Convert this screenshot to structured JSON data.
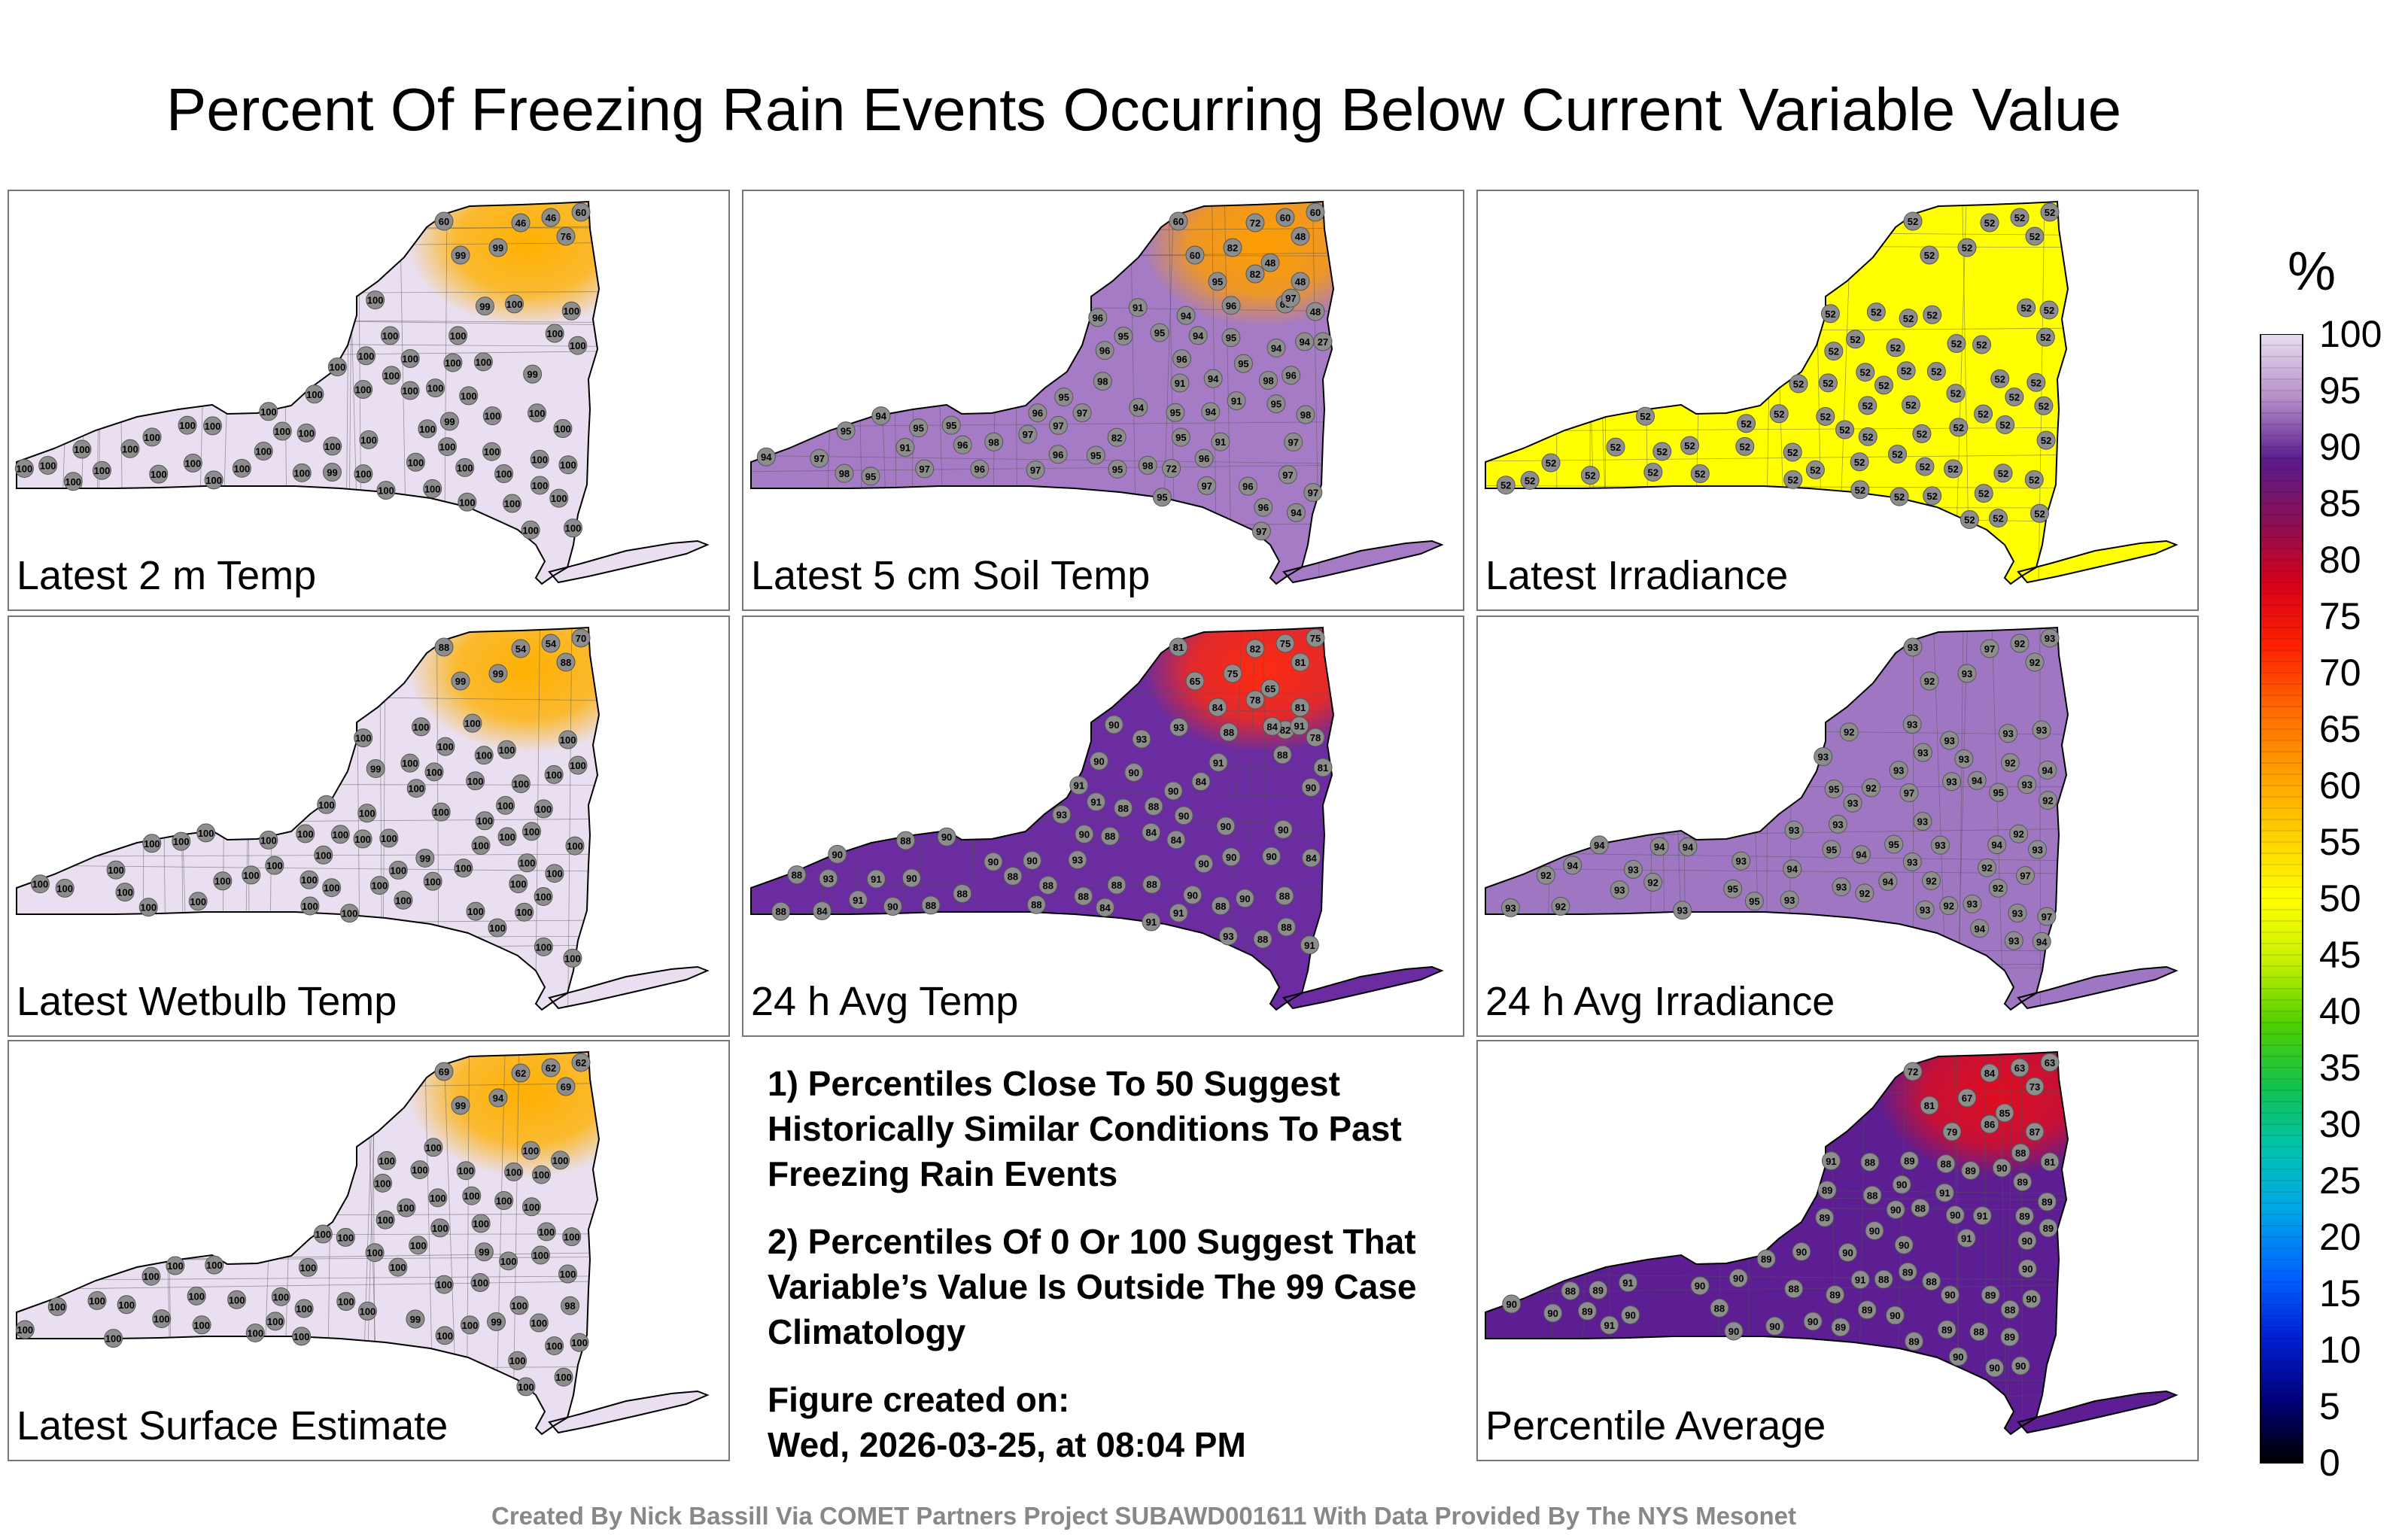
{
  "title": "Percent Of Freezing Rain Events Occurring Below Current Variable Value",
  "colorbar": {
    "unit": "%",
    "ticks": [
      "100",
      "95",
      "90",
      "85",
      "80",
      "75",
      "70",
      "65",
      "60",
      "55",
      "50",
      "45",
      "40",
      "35",
      "30",
      "25",
      "20",
      "15",
      "10",
      "5",
      "0"
    ],
    "colors": [
      "#e8def0",
      "#b791c9",
      "#5a1c8d",
      "#8a0f55",
      "#d8001a",
      "#ff2200",
      "#ff6a00",
      "#ff9f00",
      "#ffd000",
      "#ffff00",
      "#c8f000",
      "#4fcf00",
      "#13c24c",
      "#00c3b0",
      "#00a5e8",
      "#0064ff",
      "#0020d4",
      "#00007a",
      "#000000"
    ]
  },
  "panels": [
    {
      "label": "Latest 2 m Temp",
      "base": "#e9dff0",
      "hot": "#ffb000",
      "hot_values": [
        "60",
        "46",
        "46",
        "60",
        "76",
        "99",
        "99"
      ],
      "values": [
        "100",
        "100",
        "99",
        "99",
        "100",
        "100",
        "99",
        "100",
        "100",
        "99",
        "100",
        "100",
        "100",
        "100",
        "100",
        "100",
        "100",
        "100",
        "100",
        "100",
        "100",
        "100",
        "100",
        "100",
        "100",
        "100",
        "100",
        "100",
        "100",
        "100",
        "100",
        "100",
        "100",
        "100",
        "100",
        "100",
        "100",
        "100",
        "100",
        "100",
        "100",
        "100",
        "100",
        "100",
        "100",
        "100",
        "100",
        "100",
        "100",
        "100",
        "100",
        "100",
        "100",
        "100",
        "100",
        "100",
        "100",
        "100",
        "100",
        "100",
        "100",
        "100"
      ]
    },
    {
      "label": "Latest 5 cm Soil Temp",
      "base": "#a57bc5",
      "hot": "#ff9e00",
      "hot_values": [
        "60",
        "72",
        "60",
        "60",
        "48",
        "82",
        "60",
        "48",
        "95",
        "82",
        "48",
        "48",
        "60",
        "27"
      ],
      "values": [
        "94",
        "96",
        "94",
        "97",
        "97",
        "95",
        "91",
        "96",
        "97",
        "94",
        "95",
        "91",
        "97",
        "95",
        "94",
        "91",
        "72",
        "95",
        "96",
        "95",
        "97",
        "95",
        "95",
        "91",
        "94",
        "82",
        "91",
        "95",
        "97",
        "98",
        "96",
        "95",
        "94",
        "97",
        "96",
        "94",
        "95",
        "98",
        "96",
        "96",
        "97",
        "98",
        "94",
        "95",
        "96",
        "97",
        "95",
        "95",
        "98",
        "94",
        "96",
        "97",
        "96",
        "95",
        "98",
        "94",
        "96",
        "97",
        "95",
        "96",
        "97",
        "98"
      ]
    },
    {
      "label": "Latest Irradiance",
      "base": "#ffff00",
      "hot": "#ffff00",
      "hot_values": [
        "52",
        "52",
        "52",
        "52",
        "52",
        "52",
        "52"
      ],
      "values": [
        "52",
        "52",
        "52",
        "52",
        "52",
        "52",
        "52",
        "52",
        "52",
        "52",
        "52",
        "52",
        "52",
        "52",
        "52",
        "52",
        "52",
        "52",
        "52",
        "52",
        "52",
        "52",
        "52",
        "52",
        "52",
        "52",
        "52",
        "52",
        "52",
        "52",
        "52",
        "52",
        "52",
        "52",
        "52",
        "52",
        "52",
        "52",
        "52",
        "52",
        "52",
        "52",
        "52",
        "52",
        "52",
        "52",
        "52",
        "52",
        "52",
        "52",
        "52",
        "52",
        "52",
        "52",
        "52",
        "52",
        "52",
        "52",
        "52",
        "52",
        "52",
        "52"
      ]
    },
    {
      "label": "Latest Wetbulb Temp",
      "base": "#e9dff0",
      "hot": "#ffb000",
      "hot_values": [
        "88",
        "54",
        "54",
        "70",
        "88",
        "99",
        "99"
      ],
      "values": [
        "100",
        "100",
        "99",
        "99",
        "100",
        "100",
        "100",
        "100",
        "100",
        "100",
        "100",
        "100",
        "100",
        "100",
        "100",
        "100",
        "100",
        "100",
        "100",
        "100",
        "100",
        "100",
        "100",
        "100",
        "100",
        "100",
        "100",
        "100",
        "100",
        "100",
        "100",
        "100",
        "100",
        "100",
        "100",
        "100",
        "100",
        "100",
        "100",
        "100",
        "100",
        "100",
        "100",
        "100",
        "100",
        "100",
        "100",
        "100",
        "100",
        "100",
        "100",
        "100",
        "100",
        "100",
        "100",
        "100",
        "100",
        "100",
        "100",
        "100",
        "100",
        "100"
      ]
    },
    {
      "label": "24 h Avg Temp",
      "base": "#6a2ca0",
      "hot": "#ff2a10",
      "hot_values": [
        "81",
        "82",
        "75",
        "75",
        "81",
        "75",
        "65",
        "65",
        "84",
        "78",
        "81",
        "78",
        "82",
        "81"
      ],
      "values": [
        "84",
        "88",
        "90",
        "88",
        "90",
        "91",
        "90",
        "88",
        "90",
        "93",
        "84",
        "88",
        "90",
        "88",
        "91",
        "90",
        "88",
        "93",
        "90",
        "88",
        "84",
        "91",
        "88",
        "90",
        "88",
        "90",
        "91",
        "93",
        "84",
        "88",
        "90",
        "88",
        "90",
        "91",
        "90",
        "88",
        "90",
        "93",
        "84",
        "88",
        "90",
        "88",
        "91",
        "90",
        "88",
        "93",
        "90",
        "88",
        "84",
        "91",
        "88",
        "90",
        "88",
        "90",
        "91",
        "93",
        "84",
        "88",
        "90",
        "88",
        "90",
        "91"
      ]
    },
    {
      "label": "24 h Avg Irradiance",
      "base": "#9e76c2",
      "hot": "#9e76c2",
      "hot_values": [
        "93",
        "97",
        "92",
        "93",
        "92",
        "93",
        "92"
      ],
      "values": [
        "92",
        "93",
        "94",
        "93",
        "93",
        "92",
        "93",
        "95",
        "94",
        "93",
        "92",
        "97",
        "93",
        "94",
        "93",
        "92",
        "93",
        "95",
        "94",
        "93",
        "92",
        "93",
        "94",
        "93",
        "93",
        "92",
        "93",
        "95",
        "94",
        "93",
        "92",
        "97",
        "93",
        "94",
        "93",
        "92",
        "93",
        "95",
        "94",
        "93",
        "92",
        "93",
        "94",
        "93",
        "93",
        "92",
        "93",
        "95",
        "94",
        "93",
        "92",
        "97",
        "93",
        "94",
        "93",
        "92",
        "93",
        "95",
        "94",
        "93",
        "92",
        "93"
      ]
    },
    {
      "label": "Latest Surface Estimate",
      "base": "#e9dff0",
      "hot": "#ffb000",
      "hot_values": [
        "69",
        "62",
        "62",
        "62",
        "69",
        "94",
        "99"
      ],
      "values": [
        "100",
        "100",
        "99",
        "99",
        "100",
        "100",
        "99",
        "100",
        "100",
        "98",
        "100",
        "100",
        "100",
        "100",
        "100",
        "100",
        "100",
        "100",
        "100",
        "100",
        "100",
        "100",
        "100",
        "100",
        "100",
        "100",
        "100",
        "100",
        "100",
        "100",
        "100",
        "100",
        "100",
        "100",
        "100",
        "100",
        "100",
        "100",
        "100",
        "100",
        "100",
        "100",
        "100",
        "100",
        "100",
        "100",
        "100",
        "100",
        "100",
        "100",
        "100",
        "100",
        "100",
        "100",
        "100",
        "100",
        "100",
        "100",
        "100",
        "100",
        "100",
        "100"
      ]
    },
    {
      "label": "Percentile Average",
      "base": "#5c1e92",
      "hot": "#e00d20",
      "hot_values": [
        "72",
        "84",
        "63",
        "63",
        "73",
        "67",
        "81",
        "85",
        "79",
        "86",
        "87",
        "81"
      ],
      "values": [
        "89",
        "90",
        "88",
        "90",
        "89",
        "90",
        "90",
        "88",
        "91",
        "89",
        "90",
        "89",
        "88",
        "90",
        "89",
        "91",
        "90",
        "89",
        "88",
        "90",
        "89",
        "90",
        "90",
        "88",
        "91",
        "89",
        "90",
        "89",
        "88",
        "90",
        "89",
        "91",
        "90",
        "89",
        "88",
        "90",
        "89",
        "90",
        "90",
        "88",
        "91",
        "89",
        "90",
        "89",
        "88",
        "90",
        "89",
        "91",
        "90",
        "89",
        "88",
        "90",
        "89",
        "90",
        "90",
        "88",
        "91",
        "89",
        "90",
        "89",
        "88",
        "90"
      ]
    }
  ],
  "notes": {
    "note1": "1) Percentiles Close To 50 Suggest Historically Similar Conditions To Past Freezing Rain Events",
    "note2": "2) Percentiles Of 0 Or 100 Suggest That Variable’s Value Is Outside The 99 Case Climatology",
    "created_label": "Figure created on:",
    "created_date": "Wed, 2026-03-25, at 08:04 PM"
  },
  "credit": "Created By Nick Bassill Via COMET Partners Project SUBAWD001611 With Data Provided By The NYS Mesonet"
}
